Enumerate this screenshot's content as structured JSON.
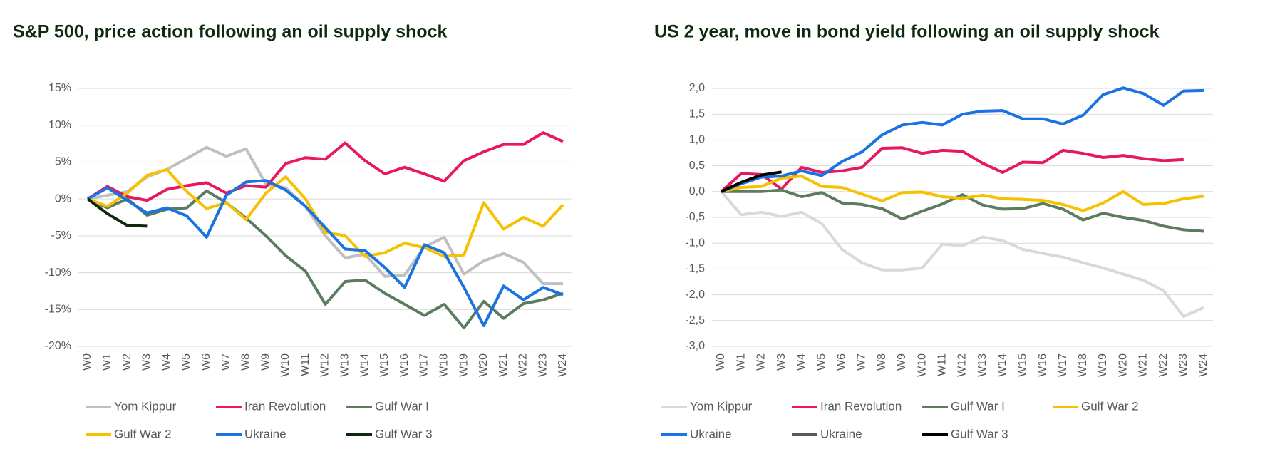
{
  "chart_data": [
    {
      "type": "line",
      "title": "S&P 500, price action following an oil supply shock",
      "categories": [
        "W0",
        "W1",
        "W2",
        "W3",
        "W4",
        "W5",
        "W6",
        "W7",
        "W8",
        "W9",
        "W10",
        "W11",
        "W12",
        "W13",
        "W14",
        "W15",
        "W16",
        "W17",
        "W18",
        "W19",
        "W20",
        "W21",
        "W22",
        "W23",
        "W24"
      ],
      "ylim": [
        -20,
        15
      ],
      "yticks": [
        {
          "value": -20,
          "label": "-20%"
        },
        {
          "value": -15,
          "label": "-15%"
        },
        {
          "value": -10,
          "label": "-10%"
        },
        {
          "value": -5,
          "label": "-5%"
        },
        {
          "value": 0,
          "label": "0%"
        },
        {
          "value": 5,
          "label": "5%"
        },
        {
          "value": 10,
          "label": "10%"
        },
        {
          "value": 15,
          "label": "15%"
        }
      ],
      "grid": true,
      "series": [
        {
          "name": "Yom Kippur",
          "color": "#bfbfbf",
          "values": [
            0,
            0.5,
            1,
            3,
            4,
            5.5,
            7,
            5.8,
            6.8,
            2,
            1.5,
            -1,
            -5,
            -8,
            -7.5,
            -10.5,
            -10.3,
            -6.5,
            -5.2,
            -10.2,
            -8.4,
            -7.4,
            -8.6,
            -11.5,
            -11.5
          ]
        },
        {
          "name": "Iran Revolution",
          "color": "#e8185f",
          "values": [
            0,
            1.7,
            0.3,
            -0.2,
            1.3,
            1.8,
            2.2,
            0.8,
            1.8,
            1.6,
            4.8,
            5.6,
            5.4,
            7.6,
            5.2,
            3.4,
            4.3,
            3.4,
            2.4,
            5.2,
            6.4,
            7.4,
            7.4,
            9,
            7.8
          ]
        },
        {
          "name": "Gulf War I",
          "color": "#5b7c5e",
          "values": [
            0,
            -1.2,
            0,
            -2.2,
            -1.4,
            -1.2,
            1.1,
            -0.5,
            -2.6,
            -5,
            -7.7,
            -9.8,
            -14.3,
            -11.2,
            -11,
            -12.8,
            -14.3,
            -15.8,
            -14.3,
            -17.5,
            -13.9,
            -16.2,
            -14.2,
            -13.7,
            -12.8
          ]
        },
        {
          "name": "Gulf War 2",
          "color": "#f5c100",
          "values": [
            0,
            -1,
            0.8,
            3.2,
            4,
            1,
            -1.3,
            -0.5,
            -2.8,
            0.8,
            3,
            0,
            -4.5,
            -5,
            -7.8,
            -7.3,
            -6,
            -6.6,
            -7.8,
            -7.6,
            -0.5,
            -4.1,
            -2.5,
            -3.7,
            -0.8
          ]
        },
        {
          "name": "Ukraine",
          "color": "#1a73e0",
          "values": [
            0,
            1.5,
            -0.2,
            -1.9,
            -1.2,
            -2.3,
            -5.2,
            0.5,
            2.3,
            2.5,
            1.2,
            -1,
            -3.9,
            -6.8,
            -7,
            -9.3,
            -12,
            -6.2,
            -7.3,
            -12,
            -17.2,
            -11.8,
            -13.7,
            -12,
            -13
          ]
        },
        {
          "name": "Gulf War 3",
          "color": "#0d2a10",
          "values": [
            0,
            -2,
            -3.6,
            -3.7,
            null,
            null,
            null,
            null,
            null,
            null,
            null,
            null,
            null,
            null,
            null,
            null,
            null,
            null,
            null,
            null,
            null,
            null,
            null,
            null,
            null
          ]
        }
      ]
    },
    {
      "type": "line",
      "title": "US 2 year, move in bond yield following an oil supply shock",
      "categories": [
        "W0",
        "W1",
        "W2",
        "W3",
        "W4",
        "W5",
        "W6",
        "W7",
        "W8",
        "W9",
        "W10",
        "W11",
        "W12",
        "W13",
        "W14",
        "W15",
        "W16",
        "W17",
        "W18",
        "W19",
        "W20",
        "W21",
        "W22",
        "W23",
        "W24"
      ],
      "ylim": [
        -3,
        2
      ],
      "yticks": [
        {
          "value": -3,
          "label": "-3,0"
        },
        {
          "value": -2.5,
          "label": "-2,5"
        },
        {
          "value": -2,
          "label": "-2,0"
        },
        {
          "value": -1.5,
          "label": "-1,5"
        },
        {
          "value": -1,
          "label": "-1,0"
        },
        {
          "value": -0.5,
          "label": "-0,5"
        },
        {
          "value": 0,
          "label": "0,0"
        },
        {
          "value": 0.5,
          "label": "0,5"
        },
        {
          "value": 1,
          "label": "1,0"
        },
        {
          "value": 1.5,
          "label": "1,5"
        },
        {
          "value": 2,
          "label": "2,0"
        }
      ],
      "grid": true,
      "series": [
        {
          "name": "Yom Kippur",
          "color": "#d9d9d9",
          "values": [
            0,
            -0.45,
            -0.4,
            -0.48,
            -0.4,
            -0.62,
            -1.12,
            -1.38,
            -1.52,
            -1.52,
            -1.48,
            -1.02,
            -1.05,
            -0.88,
            -0.95,
            -1.12,
            -1.2,
            -1.27,
            -1.38,
            -1.48,
            -1.6,
            -1.72,
            -1.92,
            -2.42,
            -2.25
          ]
        },
        {
          "name": "Iran Revolution",
          "color": "#e8185f",
          "values": [
            0,
            0.35,
            0.33,
            0.05,
            0.47,
            0.37,
            0.4,
            0.47,
            0.84,
            0.85,
            0.74,
            0.8,
            0.78,
            0.55,
            0.37,
            0.57,
            0.56,
            0.8,
            0.74,
            0.66,
            0.7,
            0.64,
            0.6,
            0.62,
            null
          ]
        },
        {
          "name": "Gulf War I",
          "color": "#5b7c5e",
          "values": [
            0,
            0,
            0,
            0.03,
            -0.1,
            -0.02,
            -0.22,
            -0.25,
            -0.33,
            -0.53,
            -0.38,
            -0.24,
            -0.06,
            -0.26,
            -0.34,
            -0.33,
            -0.23,
            -0.34,
            -0.55,
            -0.42,
            -0.5,
            -0.56,
            -0.67,
            -0.74,
            -0.77
          ]
        },
        {
          "name": "Gulf War 2",
          "color": "#f5c100",
          "values": [
            0,
            0.08,
            0.1,
            0.26,
            0.3,
            0.1,
            0.08,
            -0.05,
            -0.18,
            -0.02,
            -0.01,
            -0.1,
            -0.13,
            -0.07,
            -0.14,
            -0.15,
            -0.17,
            -0.25,
            -0.37,
            -0.22,
            0,
            -0.25,
            -0.23,
            -0.14,
            -0.09
          ]
        },
        {
          "name": "Ukraine",
          "color": "#1a73e0",
          "values": [
            0,
            0.15,
            0.28,
            0.3,
            0.4,
            0.31,
            0.58,
            0.77,
            1.1,
            1.29,
            1.34,
            1.29,
            1.5,
            1.56,
            1.57,
            1.41,
            1.41,
            1.31,
            1.48,
            1.88,
            2.01,
            1.9,
            1.67,
            1.95,
            1.96
          ]
        },
        {
          "name": "Ukraine",
          "color": "#595959",
          "values": [
            null,
            null,
            null,
            null,
            null,
            null,
            null,
            null,
            null,
            null,
            null,
            null,
            null,
            null,
            null,
            null,
            null,
            null,
            null,
            null,
            null,
            null,
            null,
            null,
            null
          ]
        },
        {
          "name": "Gulf War 3",
          "color": "#000000",
          "values": [
            0,
            0.18,
            0.32,
            0.38,
            null,
            null,
            null,
            null,
            null,
            null,
            null,
            null,
            null,
            null,
            null,
            null,
            null,
            null,
            null,
            null,
            null,
            null,
            null,
            null,
            null
          ]
        }
      ]
    }
  ]
}
